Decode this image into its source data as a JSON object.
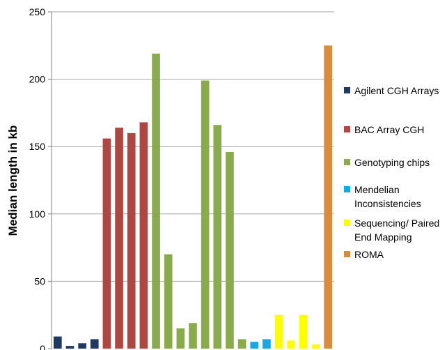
{
  "chart_data": {
    "type": "bar",
    "title": "",
    "xlabel": "",
    "ylabel": "Median length in kb",
    "ylim": [
      0,
      250
    ],
    "yticks": [
      0,
      50,
      100,
      150,
      200,
      250
    ],
    "grid": true,
    "legend_position": "right",
    "series": [
      {
        "name": "Agilent CGH Arrays",
        "color": "#1f3864",
        "values": [
          9,
          2,
          4,
          7
        ]
      },
      {
        "name": "BAC Array CGH",
        "color": "#b04641",
        "values": [
          156,
          164,
          160,
          168
        ]
      },
      {
        "name": "Genotyping chips",
        "color": "#8aaa4e",
        "values": [
          219,
          70,
          15,
          19,
          199,
          166,
          146,
          7
        ]
      },
      {
        "name": "Mendelian Inconsistencies",
        "color": "#16a8e2",
        "values": [
          5,
          7
        ]
      },
      {
        "name": "Sequencing/ Paired End Mapping",
        "color": "#ffff00",
        "values": [
          25,
          6,
          25,
          3
        ]
      },
      {
        "name": "ROMA",
        "color": "#d98c3e",
        "values": [
          225
        ]
      }
    ]
  },
  "legend": {
    "items": [
      {
        "label": "Agilent CGH Arrays",
        "color": "#1f3864"
      },
      {
        "label": "BAC Array CGH",
        "color": "#b04641"
      },
      {
        "label": "Genotyping chips",
        "color": "#8aaa4e"
      },
      {
        "label": "Mendelian Inconsistencies",
        "color": "#16a8e2"
      },
      {
        "label": "Sequencing/ Paired End Mapping",
        "color": "#ffff00"
      },
      {
        "label": "ROMA",
        "color": "#d98c3e"
      }
    ]
  }
}
